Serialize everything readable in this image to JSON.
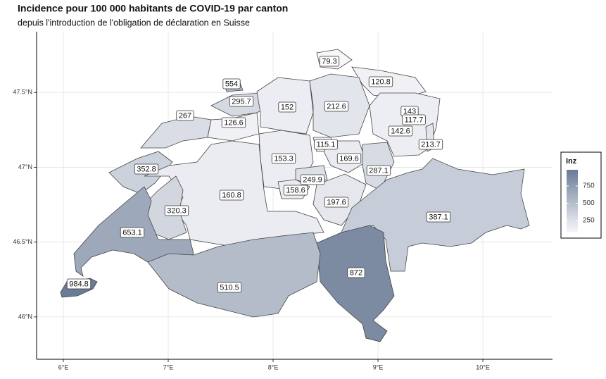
{
  "chart_data": {
    "type": "choropleth",
    "title": "Incidence pour 100 000 habitants de COVID-19 par canton",
    "subtitle": "depuis l'introduction de l'obligation de déclaration en Suisse",
    "values": [
      79.3,
      120.8,
      554,
      295.7,
      267,
      152,
      212.6,
      143,
      117.7,
      126.6,
      142.6,
      213.7,
      153.3,
      115.1,
      169.6,
      352.8,
      287.1,
      249.9,
      158.6,
      160.8,
      197.6,
      320.3,
      387.1,
      653.1,
      872,
      984.8,
      510.5
    ],
    "low_color": "#f7f7fa",
    "high_color": "#6a7b96",
    "xlim": [
      5.745,
      10.664
    ],
    "ylim": [
      45.717,
      47.906
    ],
    "xticks": [
      {
        "value": 6,
        "label": "6°E"
      },
      {
        "value": 7,
        "label": "7°E"
      },
      {
        "value": 8,
        "label": "8°E"
      },
      {
        "value": 9,
        "label": "9°E"
      },
      {
        "value": 10,
        "label": "10°E"
      }
    ],
    "yticks": [
      {
        "value": 46,
        "label": "46°N"
      },
      {
        "value": 46.5,
        "label": "46.5°N"
      },
      {
        "value": 47,
        "label": "47°N"
      },
      {
        "value": 47.5,
        "label": "47.5°N"
      }
    ],
    "grid": true,
    "legend": {
      "title": "Inz",
      "ticks": [
        250,
        500,
        750
      ]
    }
  }
}
